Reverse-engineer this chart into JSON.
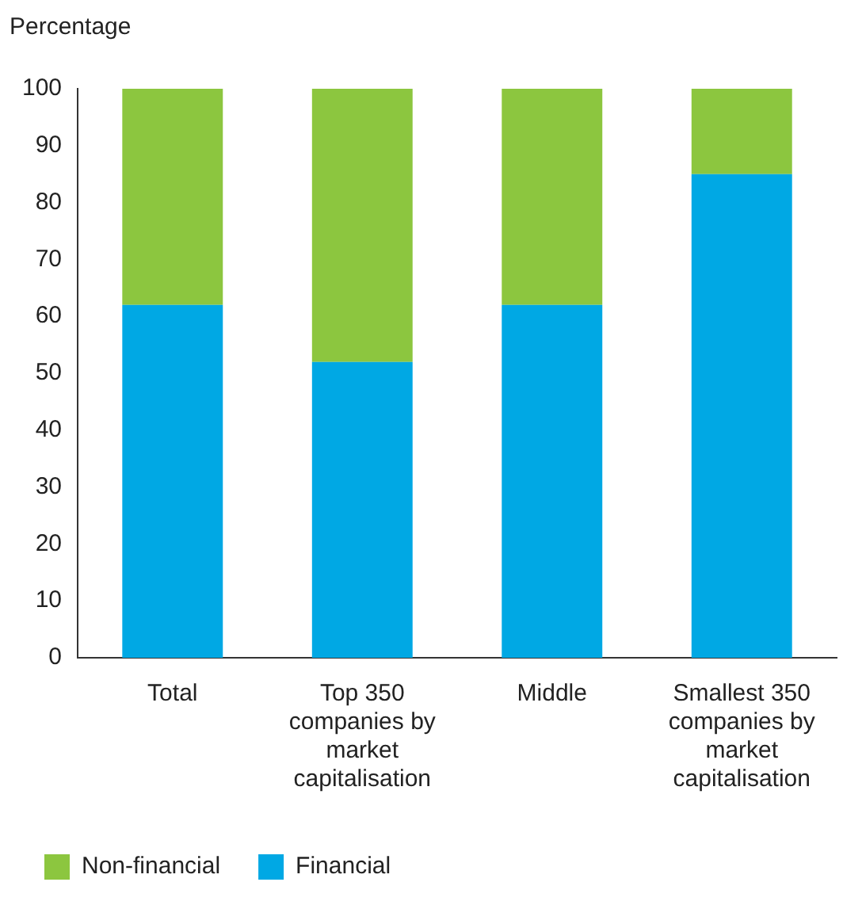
{
  "chart_data": {
    "type": "bar",
    "ylabel": "Percentage",
    "categories": [
      "Total",
      "Top 350 companies by market capitalisation",
      "Middle",
      "Smallest 350 companies by market capitalisation"
    ],
    "series": [
      {
        "name": "Financial",
        "color": "#00a8e4",
        "values": [
          62,
          52,
          62,
          85
        ]
      },
      {
        "name": "Non-financial",
        "color": "#8cc63f",
        "values": [
          38,
          48,
          38,
          15
        ]
      }
    ],
    "stacked": true,
    "ylim": [
      0,
      100
    ],
    "yticks": [
      0,
      10,
      20,
      30,
      40,
      50,
      60,
      70,
      80,
      90,
      100
    ],
    "grid": false,
    "legend": "bottom left"
  }
}
